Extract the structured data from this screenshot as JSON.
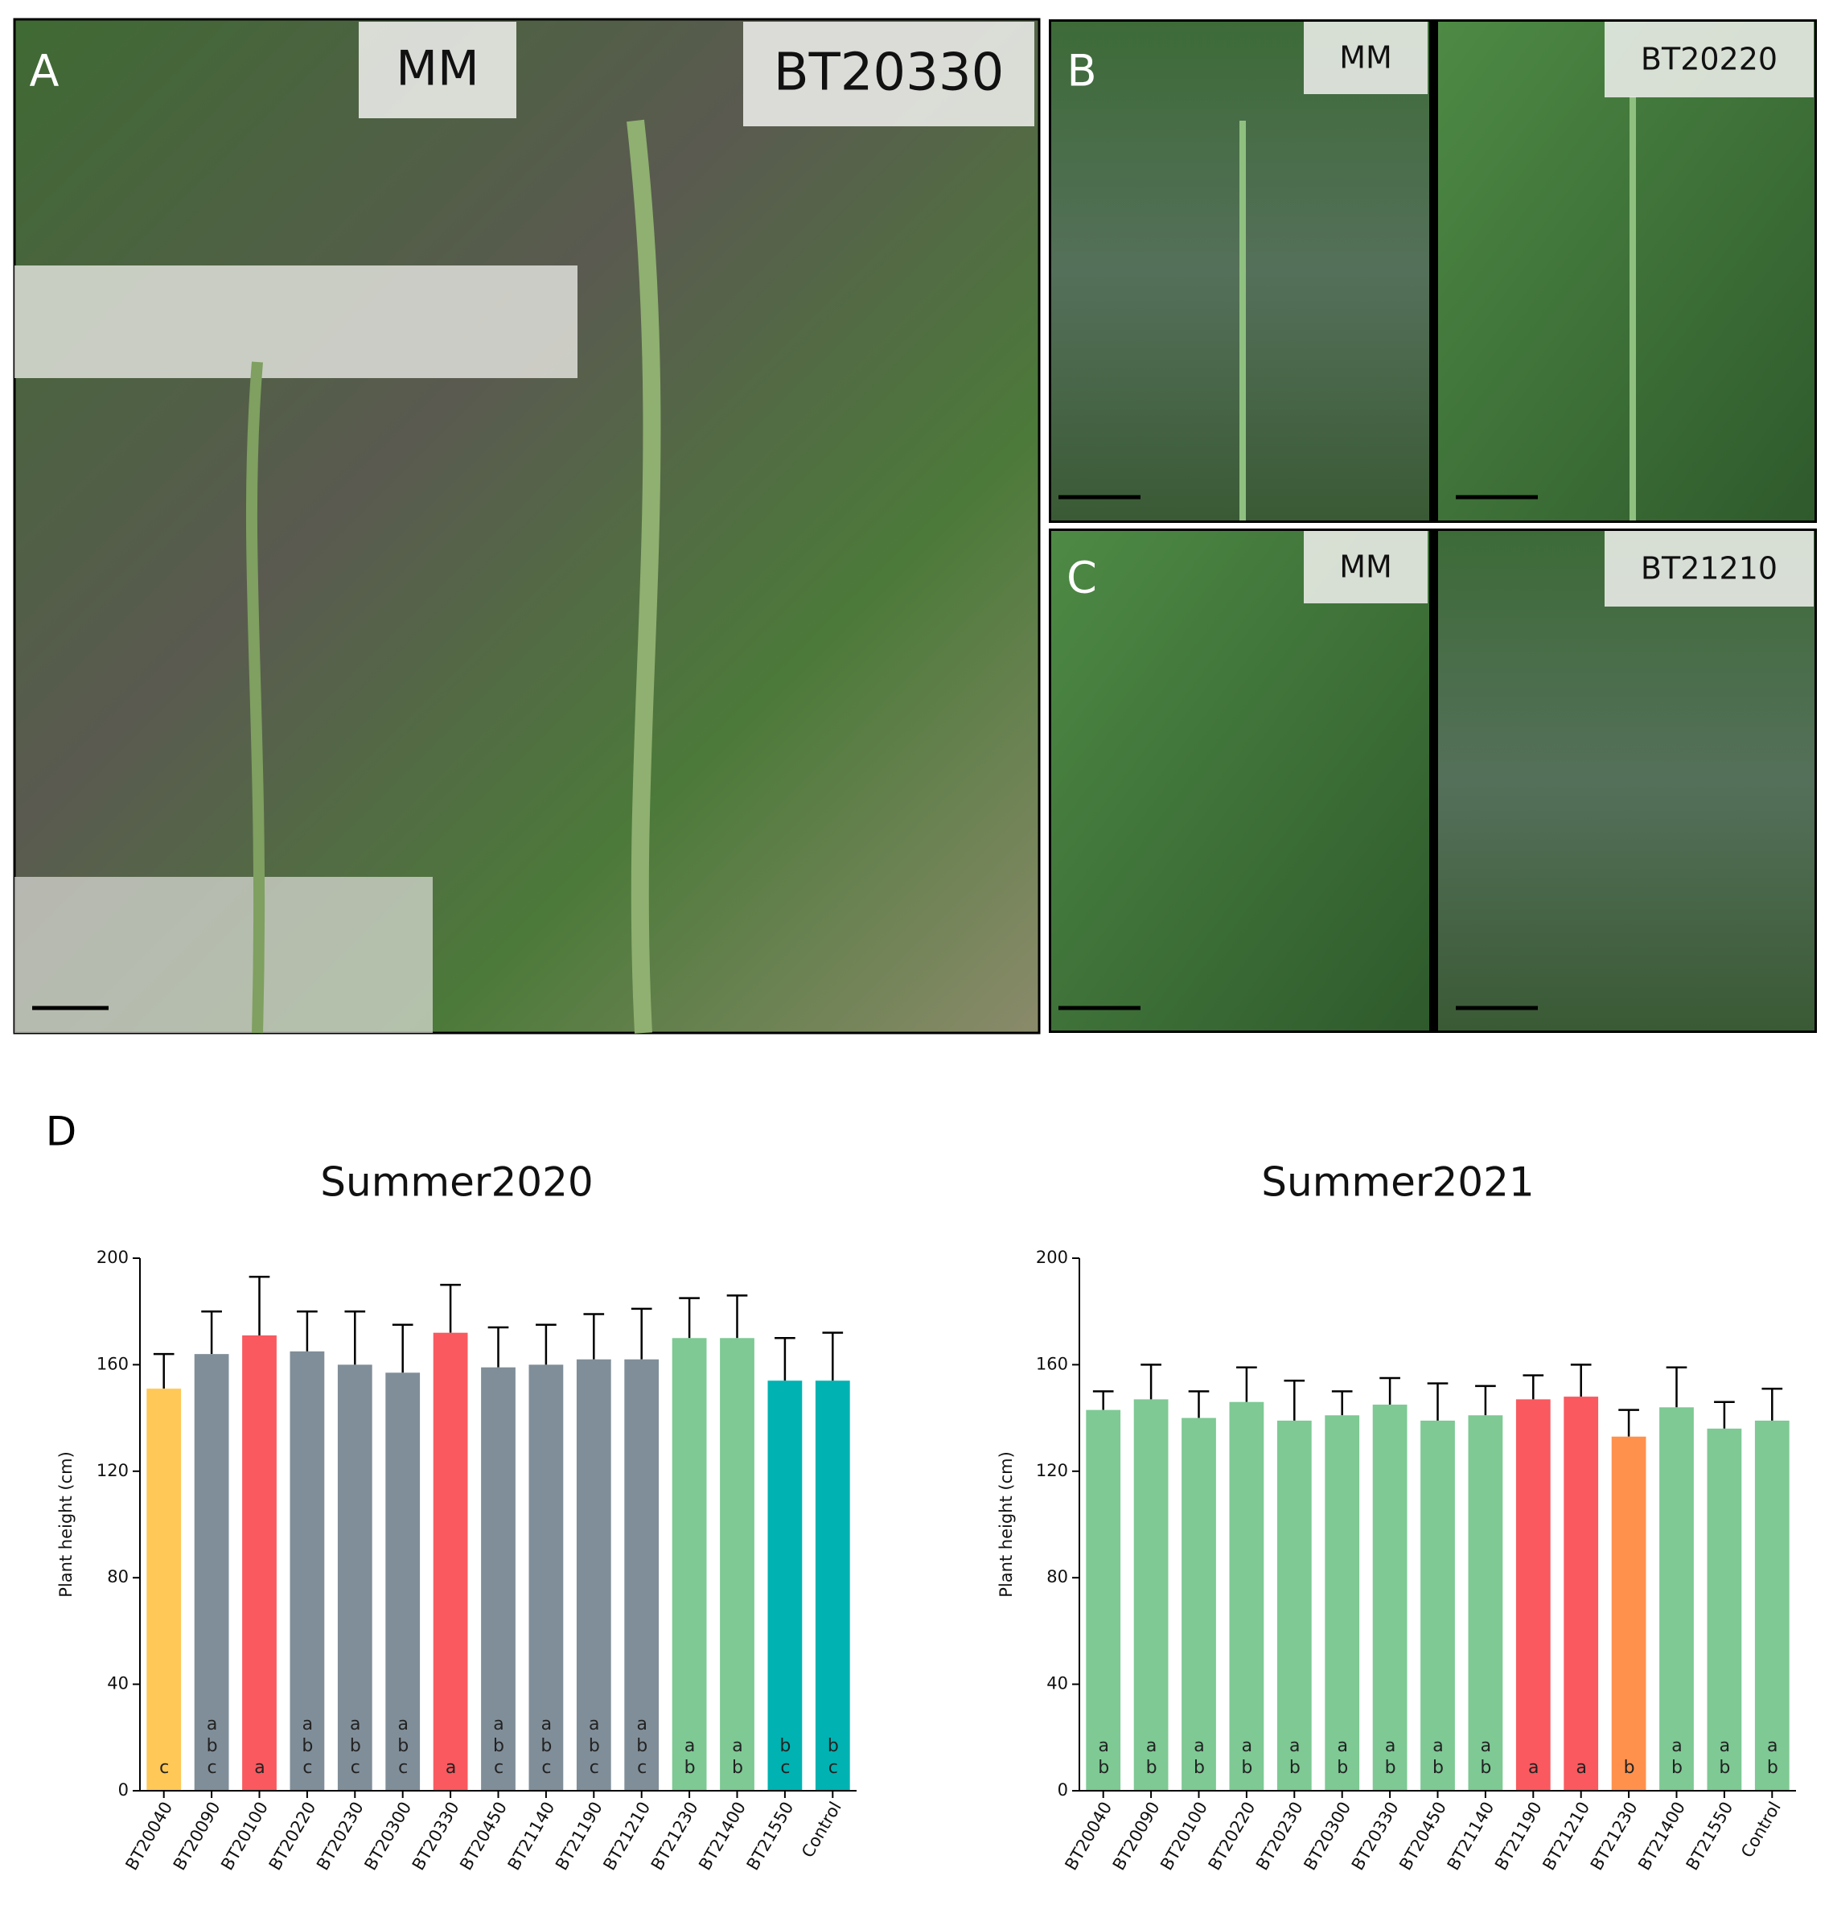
{
  "panels": [
    {
      "label": "A",
      "tags": [
        "MM",
        "BT20330"
      ]
    },
    {
      "label": "B",
      "tags": [
        "MM",
        "BT20220"
      ]
    },
    {
      "label": "C",
      "tags": [
        "MM",
        "BT21210"
      ]
    },
    {
      "label": "D"
    }
  ],
  "chart_data": [
    {
      "type": "bar",
      "title": "Summer2020",
      "y_label": "Plant height (cm)",
      "categories": [
        "BT20040",
        "BT20090",
        "BT20100",
        "BT20220",
        "BT20230",
        "BT20300",
        "BT20330",
        "BT20450",
        "BT21140",
        "BT21190",
        "BT21210",
        "BT21230",
        "BT21400",
        "BT21550",
        "Control"
      ],
      "values": [
        151,
        164,
        171,
        165,
        160,
        157,
        172,
        159,
        160,
        162,
        162,
        170,
        170,
        154,
        154
      ],
      "errors": [
        13,
        16,
        22,
        15,
        20,
        18,
        18,
        15,
        15,
        17,
        19,
        15,
        16,
        16,
        18
      ],
      "colors": [
        "#ffc857",
        "#808e99",
        "#f9595f",
        "#808e99",
        "#808e99",
        "#808e99",
        "#f9595f",
        "#808e99",
        "#808e99",
        "#808e99",
        "#808e99",
        "#7ec994",
        "#7ec994",
        "#00b2b2",
        "#00b2b2"
      ],
      "letters": [
        "c",
        "abc",
        "a",
        "abc",
        "abc",
        "abc",
        "a",
        "abc",
        "abc",
        "abc",
        "abc",
        "ab",
        "ab",
        "bc",
        "bc"
      ],
      "ylim": [
        0,
        200
      ],
      "yticks": [
        0,
        40,
        80,
        120,
        160,
        200
      ]
    },
    {
      "type": "bar",
      "title": "Summer2021",
      "y_label": "Plant height (cm)",
      "categories": [
        "BT20040",
        "BT20090",
        "BT20100",
        "BT20220",
        "BT20230",
        "BT20300",
        "BT20330",
        "BT20450",
        "BT21140",
        "BT21190",
        "BT21210",
        "BT21230",
        "BT21400",
        "BT21550",
        "Control"
      ],
      "values": [
        143,
        147,
        140,
        146,
        139,
        141,
        145,
        139,
        141,
        147,
        148,
        133,
        144,
        136,
        139
      ],
      "errors": [
        7,
        13,
        10,
        13,
        15,
        9,
        10,
        14,
        11,
        9,
        12,
        10,
        15,
        10,
        12
      ],
      "colors": [
        "#7ec994",
        "#7ec994",
        "#7ec994",
        "#7ec994",
        "#7ec994",
        "#7ec994",
        "#7ec994",
        "#7ec994",
        "#7ec994",
        "#f9595f",
        "#f9595f",
        "#ff914d",
        "#7ec994",
        "#7ec994",
        "#7ec994"
      ],
      "letters": [
        "ab",
        "ab",
        "ab",
        "ab",
        "ab",
        "ab",
        "ab",
        "ab",
        "ab",
        "a",
        "a",
        "b",
        "ab",
        "ab",
        "ab"
      ],
      "ylim": [
        0,
        200
      ],
      "yticks": [
        0,
        40,
        80,
        120,
        160,
        200
      ]
    }
  ]
}
